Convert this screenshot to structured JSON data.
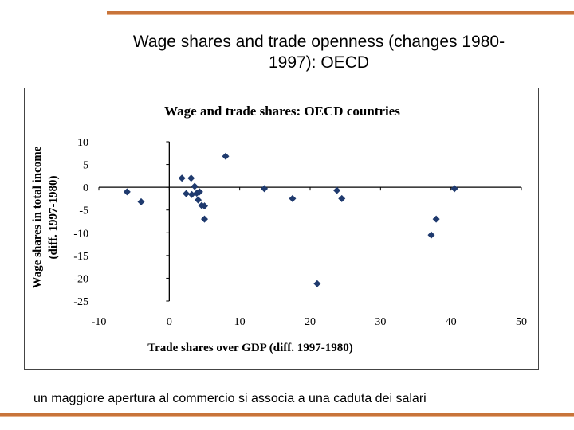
{
  "slide": {
    "title_line1": "Wage shares and trade openness  (changes 1980-",
    "title_line2": "1997): OECD",
    "caption": "un maggiore apertura al commercio si associa a una caduta dei salari"
  },
  "chart_data": {
    "type": "scatter",
    "title": "Wage and trade shares: OECD countries",
    "xlabel": "Trade shares over GDP (diff. 1997-1980)",
    "ylabel_line1": "Wage shares in total income",
    "ylabel_line2": "(diff. 1997-1980)",
    "xlim": [
      -10,
      50
    ],
    "ylim": [
      -25,
      10
    ],
    "xticks": [
      -10,
      0,
      10,
      20,
      30,
      40,
      50
    ],
    "yticks": [
      10,
      5,
      0,
      -5,
      -10,
      -15,
      -20,
      -25
    ],
    "xtick_labels": [
      "-10",
      "0",
      "10",
      "20",
      "30",
      "40",
      "50"
    ],
    "ytick_labels": [
      "10",
      "5",
      "0",
      "-5",
      "-10",
      "-15",
      "-20",
      "-25"
    ],
    "grid": false,
    "marker_color": "#1f3a6e",
    "points": [
      {
        "x": -6,
        "y": -1
      },
      {
        "x": -4,
        "y": -3.2
      },
      {
        "x": 1.8,
        "y": 2
      },
      {
        "x": 2.4,
        "y": -1.4
      },
      {
        "x": 3.1,
        "y": 2
      },
      {
        "x": 3.2,
        "y": -1.6
      },
      {
        "x": 3.6,
        "y": 0.2
      },
      {
        "x": 3.9,
        "y": -1.3
      },
      {
        "x": 4.1,
        "y": -2.8
      },
      {
        "x": 4.3,
        "y": -1
      },
      {
        "x": 4.6,
        "y": -4
      },
      {
        "x": 5.0,
        "y": -4.1
      },
      {
        "x": 5.0,
        "y": -7
      },
      {
        "x": 8.0,
        "y": 6.8
      },
      {
        "x": 13.5,
        "y": -0.3
      },
      {
        "x": 17.5,
        "y": -2.5
      },
      {
        "x": 21.0,
        "y": -21.2
      },
      {
        "x": 23.8,
        "y": -0.7
      },
      {
        "x": 24.5,
        "y": -2.5
      },
      {
        "x": 37.2,
        "y": -10.5
      },
      {
        "x": 37.9,
        "y": -7
      },
      {
        "x": 40.5,
        "y": -0.3
      }
    ]
  }
}
